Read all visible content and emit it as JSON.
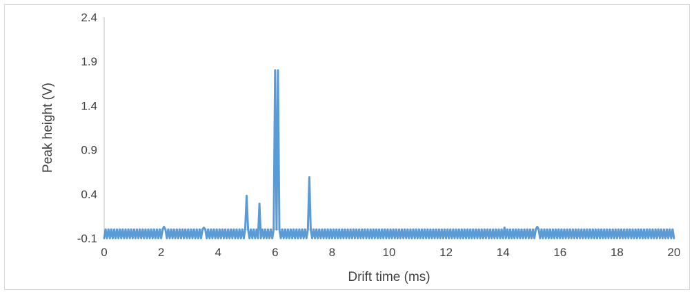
{
  "chart_data": {
    "type": "line",
    "title": "",
    "xlabel": "Drift time (ms)",
    "ylabel": "Peak height (V)",
    "xlim": [
      0,
      20
    ],
    "ylim": [
      -0.1,
      2.4
    ],
    "x_ticks": [
      "0",
      "2",
      "4",
      "6",
      "8",
      "10",
      "12",
      "14",
      "16",
      "18",
      "20"
    ],
    "y_ticks": [
      "-0.1",
      "0.4",
      "0.9",
      "1.4",
      "1.9",
      "2.4"
    ],
    "grid": false,
    "legend": "none",
    "series_color": "#5b9bd5",
    "series": [
      {
        "baseline_noise": {
          "low": -0.1,
          "high": 0.0,
          "period_ms": 0.2
        },
        "peaks": [
          {
            "x": 2.1,
            "y": 0.03
          },
          {
            "x": 3.5,
            "y": 0.02
          },
          {
            "x": 5.0,
            "y": 0.38
          },
          {
            "x": 5.45,
            "y": 0.29
          },
          {
            "x": 6.0,
            "y": 1.8
          },
          {
            "x": 6.1,
            "y": 1.8
          },
          {
            "x": 7.2,
            "y": 0.59
          },
          {
            "x": 14.05,
            "y": 0.02
          },
          {
            "x": 15.2,
            "y": 0.03
          }
        ]
      }
    ]
  }
}
